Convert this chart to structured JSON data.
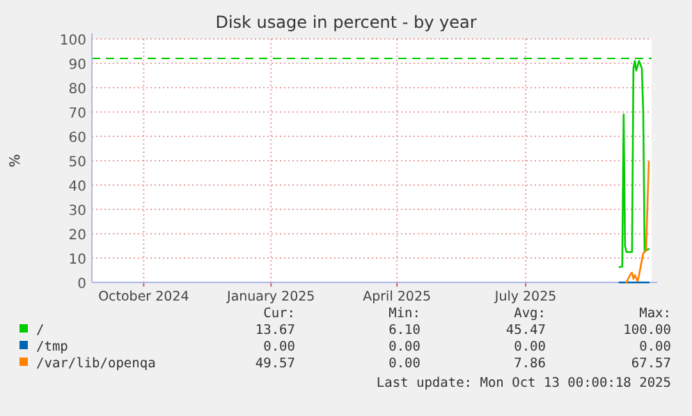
{
  "chart_data": {
    "type": "line",
    "title": "Disk usage in percent - by year",
    "ylabel": "%",
    "xlim": [
      "2024-09-09",
      "2025-10-14"
    ],
    "xticks": [
      {
        "value": "2024-10-16",
        "label": "October 2024"
      },
      {
        "value": "2025-01-15",
        "label": "January 2025"
      },
      {
        "value": "2025-04-15",
        "label": "April 2025"
      },
      {
        "value": "2025-07-16",
        "label": "July 2025"
      }
    ],
    "ylim": [
      0,
      100
    ],
    "yticks": [
      0,
      10,
      20,
      30,
      40,
      50,
      60,
      70,
      80,
      90,
      100
    ],
    "grid": true,
    "legend": "bottom left",
    "ref_lines": [
      {
        "axis": "y",
        "value": 92,
        "color": "#00cc00",
        "line_style": "dashed"
      }
    ],
    "series": [
      {
        "name": "/",
        "color": "#00cc00",
        "x": [
          "2025-09-21",
          "2025-09-23",
          "2025-09-24",
          "2025-09-25",
          "2025-09-26",
          "2025-09-30",
          "2025-10-01",
          "2025-10-02",
          "2025-10-03",
          "2025-10-05",
          "2025-10-07",
          "2025-10-08",
          "2025-10-09",
          "2025-10-12"
        ],
        "values": [
          6.3,
          6.5,
          69,
          15,
          12.5,
          12.5,
          88,
          91,
          87,
          91,
          88,
          70,
          13,
          13.7
        ]
      },
      {
        "name": "/tmp",
        "color": "#0066b3",
        "x": [
          "2025-09-21",
          "2025-10-12"
        ],
        "values": [
          0,
          0
        ]
      },
      {
        "name": "/var/lib/openqa",
        "color": "#ff8000",
        "x": [
          "2025-09-26",
          "2025-09-29",
          "2025-09-30",
          "2025-10-01",
          "2025-10-02",
          "2025-10-04",
          "2025-10-05",
          "2025-10-08",
          "2025-10-10",
          "2025-10-12"
        ],
        "values": [
          0,
          3.5,
          4,
          1.5,
          3,
          0.5,
          3,
          12,
          13,
          49.5
        ]
      }
    ],
    "annotations": [
      "Cur:",
      "Min:",
      "Avg:",
      "Max:",
      "13.67",
      "6.10",
      "45.47",
      "100.00",
      "0.00",
      "0.00",
      "0.00",
      "0.00",
      "49.57",
      "0.00",
      "7.86",
      "67.57",
      "Last update: Mon Oct 13 00:00:18 2025"
    ]
  }
}
